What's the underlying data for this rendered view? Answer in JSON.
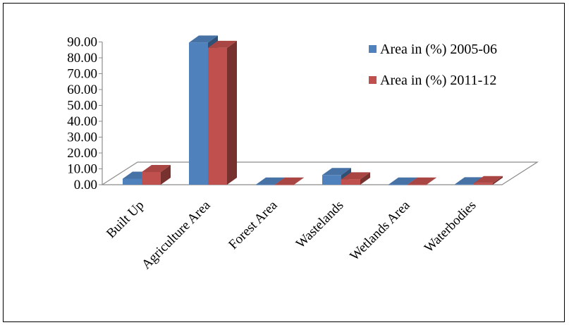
{
  "colors": {
    "series1": "#4F81BD",
    "series2": "#C0504D"
  },
  "chart_data": {
    "type": "bar",
    "variant": "3d-clustered-column",
    "categories": [
      "Built Up",
      "Agriculture Area",
      "Forest Area",
      "Wastelands",
      "Wetlands Area",
      "Waterbodies"
    ],
    "series": [
      {
        "name": "Area in (%) 2005-06",
        "values": [
          3.8,
          89.6,
          0.1,
          6.1,
          0.1,
          0.3
        ]
      },
      {
        "name": "Area in (%) 2011-12",
        "values": [
          8.0,
          86.3,
          0.1,
          3.4,
          0.1,
          1.0
        ]
      }
    ],
    "title": "",
    "xlabel": "",
    "ylabel": "",
    "ylim": [
      0,
      90
    ],
    "y_tick_labels": [
      "0.00",
      "10.00",
      "20.00",
      "30.00",
      "40.00",
      "50.00",
      "60.00",
      "70.00",
      "80.00",
      "90.00"
    ],
    "legend_position": "top-right",
    "grid": false
  }
}
